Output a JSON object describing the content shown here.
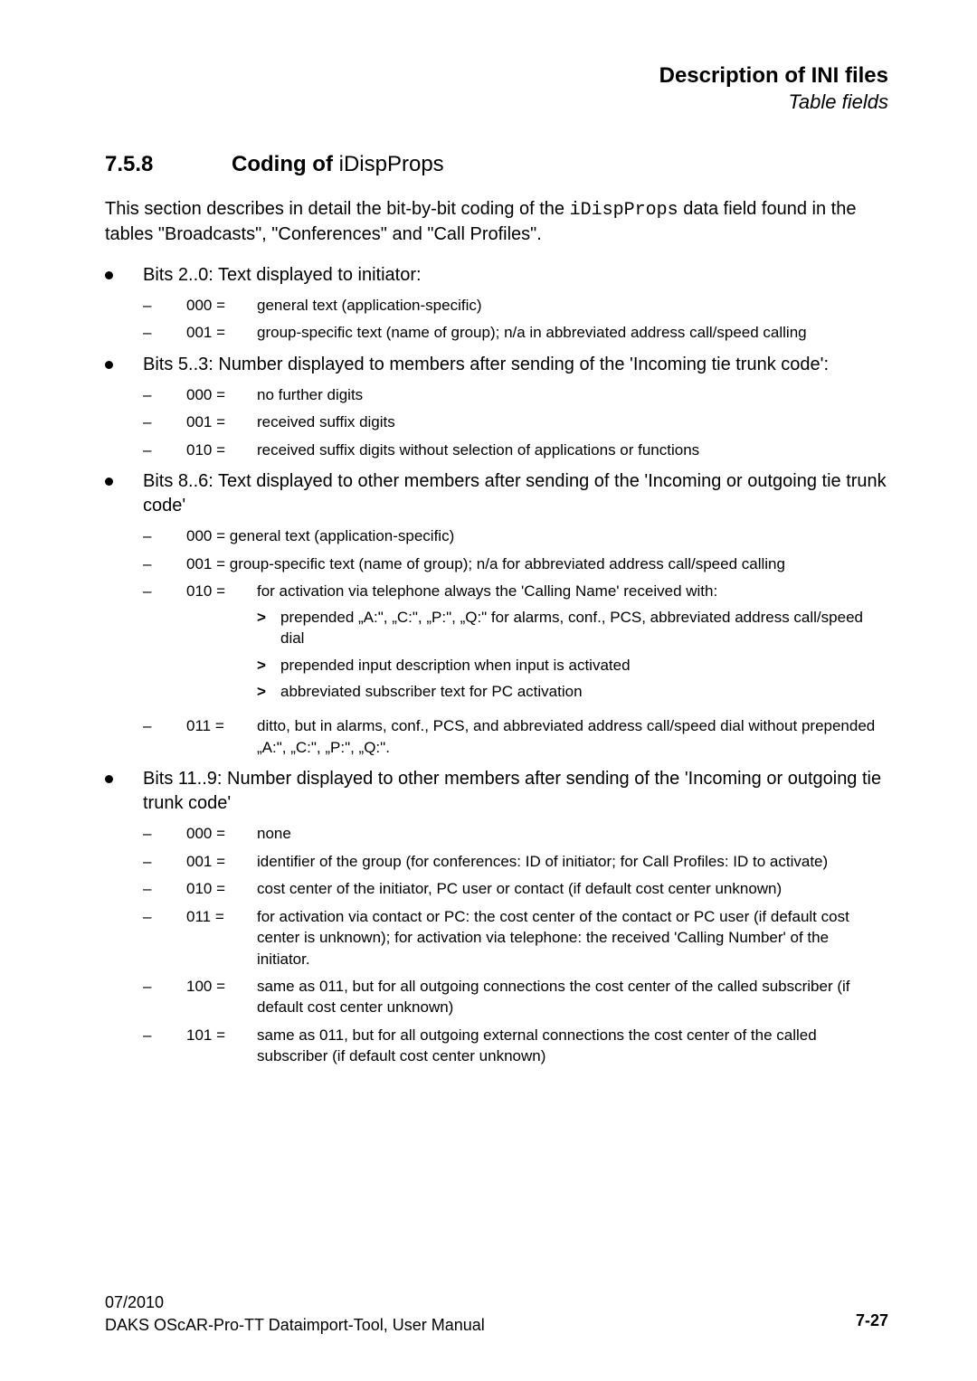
{
  "header": {
    "title": "Description of INI files",
    "subtitle": "Table fields"
  },
  "section": {
    "number": "7.5.8",
    "title_prefix": "Coding of ",
    "title_code": "iDispProps"
  },
  "intro": {
    "t1": "This section describes in detail the bit-by-bit coding of the ",
    "code": "iDispProps",
    "t2": "  data field found in the tables \"Broadcasts\", \"Conferences\" and \"Call Profiles\"."
  },
  "bullets": [
    {
      "text": "Bits 2..0: Text displayed to initiator:",
      "items": [
        {
          "code": "000 =",
          "desc": "general text (application-specific)"
        },
        {
          "code": "001 =",
          "desc": "group-specific text (name of group); n/a in abbreviated address call/speed calling"
        }
      ]
    },
    {
      "text": "Bits 5..3: Number displayed to members after sending of the 'Incoming tie trunk code':",
      "items": [
        {
          "code": "000 =",
          "desc": "no further digits"
        },
        {
          "code": "001 =",
          "desc": "received suffix digits"
        },
        {
          "code": "010 =",
          "desc": "received suffix digits without selection of applications or functions"
        }
      ]
    },
    {
      "text": "Bits 8..6: Text displayed to other members after sending of the 'Incoming or outgoing tie trunk code'",
      "items": [
        {
          "code": "",
          "desc": "000 = general text (application-specific)"
        },
        {
          "code": "",
          "desc": "001 = group-specific text (name of group); n/a for abbreviated address call/speed calling"
        },
        {
          "code": "010 =",
          "desc": "for activation via telephone always the 'Calling Name' received with:",
          "sub": [
            "prepended „A:\", „C:\", „P:\", „Q:\" for alarms, conf., PCS, abbreviated address call/speed dial",
            "prepended input description when input is activated",
            "abbreviated subscriber text for PC activation"
          ]
        },
        {
          "code": "011 =",
          "desc": "ditto, but in alarms, conf., PCS, and abbreviated address call/speed dial without prepended „A:\", „C:\", „P:\", „Q:\"."
        }
      ]
    },
    {
      "text": "Bits 11..9: Number displayed to other members after sending of the 'Incoming or outgoing tie trunk code'",
      "items": [
        {
          "code": "000 =",
          "desc": "none"
        },
        {
          "code": "001 =",
          "desc": "identifier of the group (for conferences: ID of initiator; for Call Profiles: ID to activate)"
        },
        {
          "code": "010 =",
          "desc": "cost center of the initiator, PC user or contact (if default cost center unknown)"
        },
        {
          "code": "011 =",
          "desc": "for activation via contact or PC: the cost center of the contact or PC user (if default cost center is unknown); for activation via telephone: the received 'Calling Number' of the initiator."
        },
        {
          "code": "100 =",
          "desc": "same as 011, but for all outgoing connections the cost center of the called subscriber (if default cost center unknown)"
        },
        {
          "code": "101 =",
          "desc": "same as 011,  but for all outgoing external connections the cost center of the called subscriber (if default cost center unknown)"
        }
      ]
    }
  ],
  "footer": {
    "date": "07/2010",
    "doc": "DAKS OScAR-Pro-TT Dataimport-Tool, User Manual",
    "page": "7-27"
  }
}
